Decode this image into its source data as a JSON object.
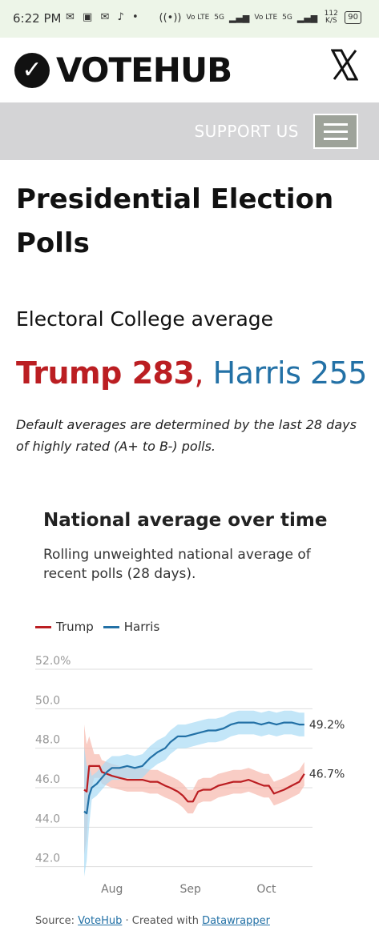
{
  "status_bar": {
    "time": "6:22 PM",
    "icons": [
      "message-icon",
      "photo-icon",
      "mail-icon",
      "tiktok-icon",
      "dot-icon"
    ],
    "network_labels": [
      "Vo LTE",
      "5G",
      "Vo LTE",
      "5G"
    ],
    "speed": "112 K/S",
    "battery": "90"
  },
  "header": {
    "logo_text": "VOTEHUB",
    "x_icon": "x-logo-icon"
  },
  "nav": {
    "support_label": "SUPPORT US",
    "menu_icon": "hamburger-icon"
  },
  "page": {
    "title": "Presidential Election Polls",
    "ec_heading": "Electoral College average",
    "ec_trump": "Trump 283",
    "ec_separator": ",",
    "ec_harris": "Harris 255",
    "note": "Default averages are determined by the last 28 days of highly rated (A+ to B-) polls."
  },
  "chart_section": {
    "title": "National average over time",
    "subtitle": "Rolling unweighted national average of recent polls (28 days).",
    "source_prefix": "Source: ",
    "source_link": "VoteHub",
    "created_prefix": " · Created with ",
    "created_link": "Datawrapper"
  },
  "colors": {
    "trump": "#bb1e22",
    "harris": "#2371a6",
    "trump_band": "#f7b8ac",
    "harris_band": "#a9dcf5",
    "gridline": "#dddddd",
    "nav_bg": "#d4d4d6"
  },
  "chart_data": {
    "type": "line",
    "title": "National average over time",
    "subtitle": "Rolling unweighted national average of recent polls (28 days).",
    "y_ticks": [
      "52.0%",
      "50.0",
      "48.0",
      "46.0",
      "44.0",
      "42.0"
    ],
    "y_tick_values": [
      52,
      50,
      48,
      46,
      44,
      42
    ],
    "ylim": [
      41.5,
      52
    ],
    "x_ticks": [
      {
        "label": "Aug",
        "day": 32
      },
      {
        "label": "Sep",
        "day": 63
      },
      {
        "label": "Oct",
        "day": 93
      }
    ],
    "x_range_days": [
      21,
      109
    ],
    "x_axis": "days of year 2024",
    "legend_position": "top-left",
    "series": [
      {
        "name": "Trump",
        "end_label": "46.7%",
        "points": [
          [
            21,
            45.9
          ],
          [
            22,
            45.8
          ],
          [
            23,
            47.1
          ],
          [
            25,
            47.1
          ],
          [
            27,
            47.1
          ],
          [
            28,
            46.8
          ],
          [
            30,
            46.7
          ],
          [
            32,
            46.6
          ],
          [
            35,
            46.5
          ],
          [
            38,
            46.4
          ],
          [
            41,
            46.4
          ],
          [
            44,
            46.4
          ],
          [
            47,
            46.3
          ],
          [
            50,
            46.3
          ],
          [
            53,
            46.1
          ],
          [
            55,
            46.0
          ],
          [
            58,
            45.8
          ],
          [
            60,
            45.6
          ],
          [
            62,
            45.3
          ],
          [
            64,
            45.3
          ],
          [
            66,
            45.8
          ],
          [
            68,
            45.9
          ],
          [
            71,
            45.9
          ],
          [
            74,
            46.1
          ],
          [
            77,
            46.2
          ],
          [
            80,
            46.3
          ],
          [
            83,
            46.3
          ],
          [
            86,
            46.4
          ],
          [
            88,
            46.3
          ],
          [
            90,
            46.2
          ],
          [
            92,
            46.1
          ],
          [
            94,
            46.1
          ],
          [
            96,
            45.7
          ],
          [
            98,
            45.8
          ],
          [
            100,
            45.9
          ],
          [
            103,
            46.1
          ],
          [
            106,
            46.3
          ],
          [
            108,
            46.7
          ]
        ],
        "band_half_width": 0.6
      },
      {
        "name": "Harris",
        "end_label": "49.2%",
        "points": [
          [
            21,
            44.8
          ],
          [
            22,
            44.7
          ],
          [
            23,
            45.6
          ],
          [
            24,
            46.0
          ],
          [
            26,
            46.2
          ],
          [
            28,
            46.5
          ],
          [
            30,
            46.8
          ],
          [
            32,
            47.0
          ],
          [
            35,
            47.0
          ],
          [
            38,
            47.1
          ],
          [
            41,
            47.0
          ],
          [
            44,
            47.1
          ],
          [
            47,
            47.5
          ],
          [
            50,
            47.8
          ],
          [
            53,
            48.0
          ],
          [
            55,
            48.3
          ],
          [
            58,
            48.6
          ],
          [
            61,
            48.6
          ],
          [
            64,
            48.7
          ],
          [
            67,
            48.8
          ],
          [
            70,
            48.9
          ],
          [
            73,
            48.9
          ],
          [
            76,
            49.0
          ],
          [
            79,
            49.2
          ],
          [
            82,
            49.3
          ],
          [
            85,
            49.3
          ],
          [
            88,
            49.3
          ],
          [
            91,
            49.2
          ],
          [
            94,
            49.3
          ],
          [
            97,
            49.2
          ],
          [
            100,
            49.3
          ],
          [
            103,
            49.3
          ],
          [
            106,
            49.2
          ],
          [
            108,
            49.2
          ]
        ],
        "band_half_width": 0.6
      }
    ]
  }
}
